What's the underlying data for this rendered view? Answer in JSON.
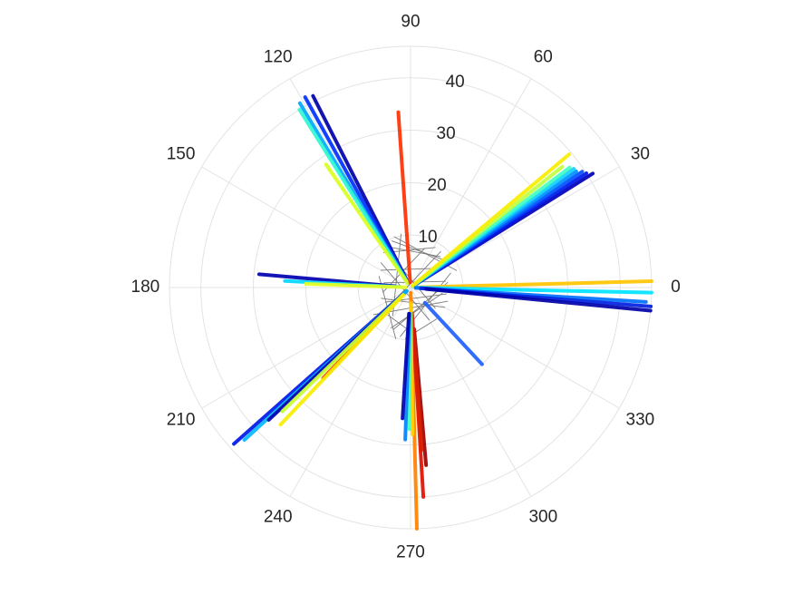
{
  "chart_data": {
    "type": "scatter",
    "title": "",
    "coordinate_system": "polar",
    "theta_unit": "degrees",
    "theta_ticks": [
      0,
      30,
      60,
      90,
      120,
      150,
      180,
      210,
      240,
      270,
      300,
      330
    ],
    "theta_tick_labels": [
      "0",
      "30",
      "60",
      "90",
      "120",
      "150",
      "180",
      "210",
      "240",
      "270",
      "300",
      "330"
    ],
    "r_ticks": [
      10,
      20,
      30,
      40
    ],
    "r_tick_labels": [
      "10",
      "20",
      "30",
      "40"
    ],
    "r_lim": [
      0,
      46
    ],
    "grid": true,
    "colormap": "jet",
    "rays": [
      {
        "theta": 32,
        "r_start": 0.5,
        "r_end": 41.0,
        "color": "#0000b8"
      },
      {
        "theta": 33,
        "r_start": 0.5,
        "r_end": 40.0,
        "color": "#0018e8"
      },
      {
        "theta": 34,
        "r_start": 0.5,
        "r_end": 39.5,
        "color": "#0050ff"
      },
      {
        "theta": 35,
        "r_start": 0.5,
        "r_end": 38.6,
        "color": "#0090ff"
      },
      {
        "theta": 36,
        "r_start": 0.5,
        "r_end": 38.5,
        "color": "#10d0ff"
      },
      {
        "theta": 37,
        "r_start": 0.5,
        "r_end": 38.0,
        "color": "#40ffc0"
      },
      {
        "theta": 38.5,
        "r_start": 0.5,
        "r_end": 37.0,
        "color": "#c0ff40"
      },
      {
        "theta": 40,
        "r_start": 0.5,
        "r_end": 39.5,
        "color": "#f8ee00"
      },
      {
        "theta": 1.5,
        "r_start": 1.0,
        "r_end": 46.0,
        "color": "#ffc400"
      },
      {
        "theta": 358.8,
        "r_start": 1.0,
        "r_end": 46.0,
        "color": "#00e4ff"
      },
      {
        "theta": 356.5,
        "r_start": 1.0,
        "r_end": 45.0,
        "color": "#0070ff"
      },
      {
        "theta": 355.5,
        "r_start": 2.0,
        "r_end": 46.0,
        "color": "#0020e0"
      },
      {
        "theta": 354.5,
        "r_start": 3.0,
        "r_end": 46.0,
        "color": "#0000a8"
      },
      {
        "theta": 313,
        "r_start": 4.0,
        "r_end": 20.0,
        "color": "#2060ff"
      },
      {
        "theta": 271.5,
        "r_start": 1.0,
        "r_end": 46.0,
        "color": "#ff8000"
      },
      {
        "theta": 273.5,
        "r_start": 5.0,
        "r_end": 40.0,
        "color": "#e01000"
      },
      {
        "theta": 275,
        "r_start": 8.0,
        "r_end": 34.0,
        "color": "#a00000"
      },
      {
        "theta": 274,
        "r_start": 8.0,
        "r_end": 31.0,
        "color": "#d82000"
      },
      {
        "theta": 270.8,
        "r_start": 3.0,
        "r_end": 28.0,
        "color": "#ffd000"
      },
      {
        "theta": 269.5,
        "r_start": 5.0,
        "r_end": 27.0,
        "color": "#40ffc0"
      },
      {
        "theta": 268,
        "r_start": 5.0,
        "r_end": 29.0,
        "color": "#0080ff"
      },
      {
        "theta": 266.5,
        "r_start": 5.0,
        "r_end": 25.0,
        "color": "#0000b0"
      },
      {
        "theta": 226,
        "r_start": 5.0,
        "r_end": 24.0,
        "color": "#ff3000"
      },
      {
        "theta": 221.5,
        "r_start": 1.0,
        "r_end": 45.0,
        "color": "#0018e8"
      },
      {
        "theta": 222.5,
        "r_start": 1.0,
        "r_end": 43.0,
        "color": "#00b8ff"
      },
      {
        "theta": 223,
        "r_start": 2.0,
        "r_end": 37.0,
        "color": "#0000b0"
      },
      {
        "theta": 224,
        "r_start": 2.0,
        "r_end": 34.0,
        "color": "#c8ff30"
      },
      {
        "theta": 226.5,
        "r_start": 2.0,
        "r_end": 36.0,
        "color": "#f8ee00"
      },
      {
        "theta": 117,
        "r_start": 1.0,
        "r_end": 41.0,
        "color": "#0000a8"
      },
      {
        "theta": 119,
        "r_start": 1.0,
        "r_end": 41.5,
        "color": "#0030ff"
      },
      {
        "theta": 121,
        "r_start": 1.0,
        "r_end": 41.0,
        "color": "#00a8ff"
      },
      {
        "theta": 122,
        "r_start": 1.0,
        "r_end": 40.0,
        "color": "#30f8d0"
      },
      {
        "theta": 124.5,
        "r_start": 1.0,
        "r_end": 28.5,
        "color": "#d8ff20"
      },
      {
        "theta": 94,
        "r_start": 1.0,
        "r_end": 33.5,
        "color": "#ff3000"
      },
      {
        "theta": 175,
        "r_start": 3.0,
        "r_end": 29.0,
        "color": "#0000b0"
      },
      {
        "theta": 177,
        "r_start": 2.0,
        "r_end": 24.0,
        "color": "#00d8ff"
      },
      {
        "theta": 178,
        "r_start": 1.0,
        "r_end": 20.0,
        "color": "#e8ff20"
      }
    ],
    "connector_lines": [
      {
        "r1": 10.2,
        "t1": 108,
        "r2": 9.4,
        "t2": 20
      },
      {
        "r1": 9.6,
        "t1": 112,
        "r2": 8.8,
        "t2": 34
      },
      {
        "r1": 9.0,
        "t1": 120,
        "r2": 8.2,
        "t2": 46
      },
      {
        "r1": 8.4,
        "t1": 128,
        "r2": 9.0,
        "t2": 58
      },
      {
        "r1": 10.4,
        "t1": 100,
        "r2": 6.4,
        "t2": 238
      },
      {
        "r1": 7.4,
        "t1": 140,
        "r2": 7.2,
        "t2": 300
      },
      {
        "r1": 6.4,
        "t1": 160,
        "r2": 10.2,
        "t2": 254
      },
      {
        "r1": 6.0,
        "t1": 200,
        "r2": 7.6,
        "t2": 330
      },
      {
        "r1": 8.2,
        "t1": 20,
        "r2": 9.6,
        "t2": 258
      },
      {
        "r1": 7.6,
        "t1": 340,
        "r2": 8.8,
        "t2": 216
      },
      {
        "r1": 9.0,
        "t1": 50,
        "r2": 6.6,
        "t2": 222
      },
      {
        "r1": 5.6,
        "t1": 210,
        "r2": 7.0,
        "t2": 350
      },
      {
        "r1": 6.8,
        "t1": 230,
        "r2": 8.4,
        "t2": 270
      },
      {
        "r1": 9.8,
        "t1": 264,
        "r2": 7.8,
        "t2": 310
      },
      {
        "r1": 7.2,
        "t1": 8,
        "r2": 8.6,
        "t2": 248
      },
      {
        "r1": 6.2,
        "t1": 320,
        "r2": 6.0,
        "t2": 120
      },
      {
        "r1": 8.0,
        "t1": 70,
        "r2": 5.4,
        "t2": 190
      },
      {
        "r1": 6.6,
        "t1": 150,
        "r2": 7.4,
        "t2": 30
      },
      {
        "r1": 5.2,
        "t1": 170,
        "r2": 6.8,
        "t2": 10
      },
      {
        "r1": 8.6,
        "t1": 244,
        "r2": 6.2,
        "t2": 350
      }
    ]
  }
}
